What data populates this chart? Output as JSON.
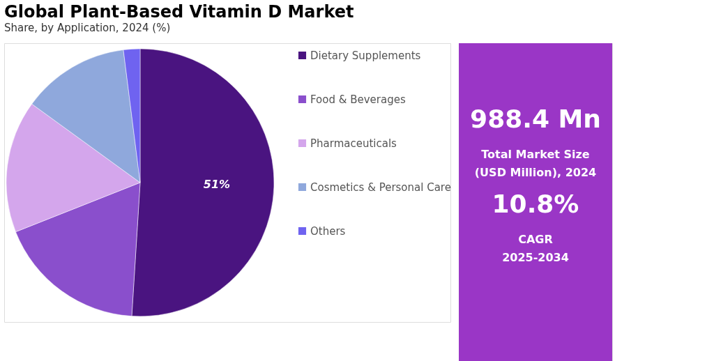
{
  "chart_data": [
    {
      "type": "pie",
      "title": "Global Plant-Based Vitamin D Market",
      "subtitle": "Share, by Application, 2024 (%)",
      "categories": [
        "Dietary Supplements",
        "Food & Beverages",
        "Pharmaceuticals",
        "Cosmetics & Personal Care",
        "Others"
      ],
      "values": [
        51,
        18,
        16,
        13,
        2
      ],
      "colors": [
        "#4a1480",
        "#8a4fcc",
        "#d4a6ec",
        "#8fa8dc",
        "#6f63f0"
      ],
      "value_labels": [
        "51%",
        null,
        null,
        null,
        null
      ],
      "legend": "right"
    },
    {
      "type": "other",
      "annotations": [
        "988.4 Mn",
        "Total Market Size",
        "(USD Million), 2024",
        "10.8%",
        "CAGR",
        "2025-2034"
      ]
    }
  ]
}
